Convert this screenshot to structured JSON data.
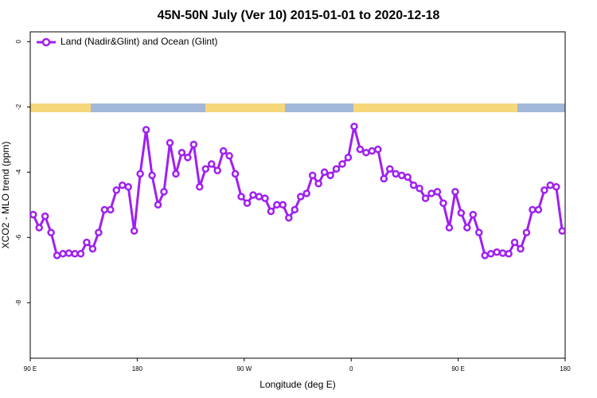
{
  "chart_data": {
    "type": "line",
    "title": "45N-50N July (Ver 10)   2015-01-01 to 2020-12-18",
    "xlabel": "Longitude (deg E)",
    "ylabel": "XCO2 - MLO trend (ppm)",
    "xlim": [
      90,
      540
    ],
    "ylim": [
      -9.7,
      0.3
    ],
    "xticks": [
      {
        "value": 90,
        "label": "90 E"
      },
      180,
      {
        "value": 270,
        "label": "90 W"
      },
      {
        "value": 360,
        "label": "0"
      },
      {
        "value": 450,
        "label": "90 E"
      },
      {
        "value": 540,
        "label": "180"
      }
    ],
    "yticks": [
      0,
      -2,
      -4,
      -6,
      -8
    ],
    "legend": "top-left",
    "x": [
      92.5,
      97.5,
      102.5,
      107.5,
      112.5,
      117.5,
      122.5,
      127.5,
      132.5,
      137.5,
      142.5,
      147.5,
      152.5,
      157.5,
      162.5,
      167.5,
      172.5,
      177.5,
      182.5,
      187.5,
      192.5,
      197.5,
      202.5,
      207.5,
      212.5,
      217.5,
      222.5,
      227.5,
      232.5,
      237.5,
      242.5,
      247.5,
      252.5,
      257.5,
      262.5,
      267.5,
      272.5,
      277.5,
      282.5,
      287.5,
      292.5,
      297.5,
      302.5,
      307.5,
      312.5,
      317.5,
      322.5,
      327.5,
      332.5,
      337.5,
      342.5,
      347.5,
      352.5,
      357.5,
      362.5,
      367.5,
      372.5,
      377.5,
      382.5,
      387.5,
      392.5,
      397.5,
      402.5,
      407.5,
      412.5,
      417.5,
      422.5,
      427.5,
      432.5,
      437.5,
      442.5,
      447.5,
      452.5,
      457.5,
      462.5,
      467.5,
      472.5,
      477.5,
      482.5,
      487.5,
      492.5,
      497.5,
      502.5,
      507.5,
      512.5,
      517.5,
      522.5,
      527.5,
      532.5,
      537.5
    ],
    "series": [
      {
        "name": "Land (Nadir&Glint) and Ocean (Glint)",
        "color": "#a020f0",
        "values": [
          -5.3,
          -5.7,
          -5.35,
          -5.85,
          -6.55,
          -6.5,
          -6.48,
          -6.5,
          -6.5,
          -6.15,
          -6.35,
          -5.85,
          -5.15,
          -5.15,
          -4.55,
          -4.4,
          -4.45,
          -5.8,
          -4.05,
          -2.7,
          -4.1,
          -5.0,
          -4.6,
          -3.1,
          -4.05,
          -3.4,
          -3.55,
          -3.15,
          -4.45,
          -3.9,
          -3.75,
          -3.95,
          -3.35,
          -3.5,
          -4.05,
          -4.75,
          -4.95,
          -4.7,
          -4.75,
          -4.8,
          -5.2,
          -5.0,
          -5.0,
          -5.4,
          -5.15,
          -4.75,
          -4.65,
          -4.1,
          -4.35,
          -4.0,
          -4.1,
          -3.9,
          -3.75,
          -3.55,
          -2.6,
          -3.3,
          -3.4,
          -3.35,
          -3.3,
          -4.2,
          -3.9,
          -4.05,
          -4.1,
          -4.15,
          -4.4,
          -4.5,
          -4.8,
          -4.65,
          -4.6,
          -4.95,
          -5.7,
          -4.6,
          -5.25,
          -5.7,
          -5.3,
          -5.85,
          -6.55,
          -6.5,
          -6.45,
          -6.48,
          -6.5,
          -6.15,
          -6.35,
          -5.85,
          -5.15,
          -5.15,
          -4.55,
          -4.4,
          -4.45,
          -5.8
        ]
      }
    ]
  }
}
